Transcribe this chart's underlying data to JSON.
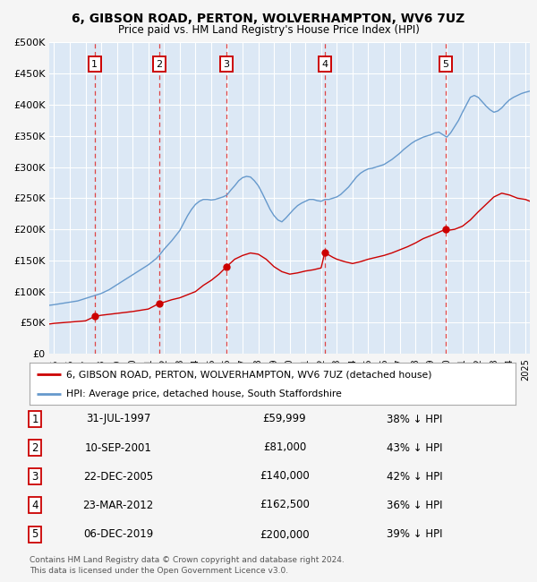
{
  "title": "6, GIBSON ROAD, PERTON, WOLVERHAMPTON, WV6 7UZ",
  "subtitle": "Price paid vs. HM Land Registry's House Price Index (HPI)",
  "background_color": "#f5f5f5",
  "plot_bg_color": "#dce8f5",
  "grid_color": "#ffffff",
  "ylim": [
    0,
    500000
  ],
  "yticks": [
    0,
    50000,
    100000,
    150000,
    200000,
    250000,
    300000,
    350000,
    400000,
    450000,
    500000
  ],
  "ytick_labels": [
    "£0",
    "£50K",
    "£100K",
    "£150K",
    "£200K",
    "£250K",
    "£300K",
    "£350K",
    "£400K",
    "£450K",
    "£500K"
  ],
  "xlim_start": 1994.7,
  "xlim_end": 2025.3,
  "xtick_years": [
    1995,
    1996,
    1997,
    1998,
    1999,
    2000,
    2001,
    2002,
    2003,
    2004,
    2005,
    2006,
    2007,
    2008,
    2009,
    2010,
    2011,
    2012,
    2013,
    2014,
    2015,
    2016,
    2017,
    2018,
    2019,
    2020,
    2021,
    2022,
    2023,
    2024,
    2025
  ],
  "sales": [
    {
      "date_decimal": 1997.58,
      "price": 59999,
      "label": "1"
    },
    {
      "date_decimal": 2001.69,
      "price": 81000,
      "label": "2"
    },
    {
      "date_decimal": 2005.98,
      "price": 140000,
      "label": "3"
    },
    {
      "date_decimal": 2012.23,
      "price": 162500,
      "label": "4"
    },
    {
      "date_decimal": 2019.93,
      "price": 200000,
      "label": "5"
    }
  ],
  "sale_color": "#cc0000",
  "hpi_color": "#6699cc",
  "dashed_line_color": "#dd4444",
  "legend_label_red": "6, GIBSON ROAD, PERTON, WOLVERHAMPTON, WV6 7UZ (detached house)",
  "legend_label_blue": "HPI: Average price, detached house, South Staffordshire",
  "table_rows": [
    {
      "num": "1",
      "date": "31-JUL-1997",
      "price": "£59,999",
      "hpi": "38% ↓ HPI"
    },
    {
      "num": "2",
      "date": "10-SEP-2001",
      "price": "£81,000",
      "hpi": "43% ↓ HPI"
    },
    {
      "num": "3",
      "date": "22-DEC-2005",
      "price": "£140,000",
      "hpi": "42% ↓ HPI"
    },
    {
      "num": "4",
      "date": "23-MAR-2012",
      "price": "£162,500",
      "hpi": "36% ↓ HPI"
    },
    {
      "num": "5",
      "date": "06-DEC-2019",
      "price": "£200,000",
      "hpi": "39% ↓ HPI"
    }
  ],
  "footer": "Contains HM Land Registry data © Crown copyright and database right 2024.\nThis data is licensed under the Open Government Licence v3.0.",
  "hpi_data": {
    "years": [
      1994.7,
      1995.0,
      1995.25,
      1995.5,
      1995.75,
      1996.0,
      1996.25,
      1996.5,
      1996.75,
      1997.0,
      1997.25,
      1997.5,
      1997.75,
      1998.0,
      1998.25,
      1998.5,
      1998.75,
      1999.0,
      1999.25,
      1999.5,
      1999.75,
      2000.0,
      2000.25,
      2000.5,
      2000.75,
      2001.0,
      2001.25,
      2001.5,
      2001.75,
      2002.0,
      2002.25,
      2002.5,
      2002.75,
      2003.0,
      2003.25,
      2003.5,
      2003.75,
      2004.0,
      2004.25,
      2004.5,
      2004.75,
      2005.0,
      2005.25,
      2005.5,
      2005.75,
      2006.0,
      2006.25,
      2006.5,
      2006.75,
      2007.0,
      2007.25,
      2007.5,
      2007.75,
      2008.0,
      2008.25,
      2008.5,
      2008.75,
      2009.0,
      2009.25,
      2009.5,
      2009.75,
      2010.0,
      2010.25,
      2010.5,
      2010.75,
      2011.0,
      2011.25,
      2011.5,
      2011.75,
      2012.0,
      2012.25,
      2012.5,
      2012.75,
      2013.0,
      2013.25,
      2013.5,
      2013.75,
      2014.0,
      2014.25,
      2014.5,
      2014.75,
      2015.0,
      2015.25,
      2015.5,
      2015.75,
      2016.0,
      2016.25,
      2016.5,
      2016.75,
      2017.0,
      2017.25,
      2017.5,
      2017.75,
      2018.0,
      2018.25,
      2018.5,
      2018.75,
      2019.0,
      2019.25,
      2019.5,
      2019.75,
      2020.0,
      2020.25,
      2020.5,
      2020.75,
      2021.0,
      2021.25,
      2021.5,
      2021.75,
      2022.0,
      2022.25,
      2022.5,
      2022.75,
      2023.0,
      2023.25,
      2023.5,
      2023.75,
      2024.0,
      2024.25,
      2024.5,
      2024.75,
      2025.0,
      2025.3
    ],
    "values": [
      78000,
      79000,
      80000,
      81000,
      82000,
      83000,
      84000,
      85000,
      87000,
      89000,
      91000,
      93000,
      95000,
      97000,
      100000,
      103000,
      107000,
      111000,
      115000,
      119000,
      123000,
      127000,
      131000,
      135000,
      139000,
      143000,
      148000,
      153000,
      160000,
      168000,
      175000,
      182000,
      190000,
      198000,
      210000,
      222000,
      232000,
      240000,
      245000,
      248000,
      248000,
      247000,
      248000,
      250000,
      252000,
      255000,
      263000,
      270000,
      278000,
      283000,
      285000,
      284000,
      278000,
      270000,
      258000,
      245000,
      232000,
      222000,
      215000,
      212000,
      218000,
      225000,
      232000,
      238000,
      242000,
      245000,
      248000,
      248000,
      246000,
      245000,
      248000,
      248000,
      250000,
      252000,
      256000,
      262000,
      268000,
      276000,
      284000,
      290000,
      294000,
      297000,
      298000,
      300000,
      302000,
      304000,
      308000,
      312000,
      317000,
      322000,
      328000,
      333000,
      338000,
      342000,
      345000,
      348000,
      350000,
      352000,
      355000,
      356000,
      352000,
      348000,
      355000,
      365000,
      375000,
      388000,
      400000,
      412000,
      415000,
      412000,
      405000,
      398000,
      392000,
      388000,
      390000,
      395000,
      402000,
      408000,
      412000,
      415000,
      418000,
      420000,
      422000
    ]
  },
  "red_line_data": {
    "years": [
      1994.7,
      1995.0,
      1995.5,
      1996.0,
      1996.5,
      1997.0,
      1997.58,
      1998.0,
      1998.5,
      1999.0,
      1999.5,
      2000.0,
      2000.5,
      2001.0,
      2001.69,
      2002.0,
      2002.5,
      2003.0,
      2003.5,
      2004.0,
      2004.5,
      2005.0,
      2005.5,
      2005.98,
      2006.5,
      2007.0,
      2007.5,
      2008.0,
      2008.5,
      2009.0,
      2009.5,
      2010.0,
      2010.5,
      2011.0,
      2011.5,
      2012.0,
      2012.23,
      2012.75,
      2013.0,
      2013.5,
      2014.0,
      2014.5,
      2015.0,
      2015.5,
      2016.0,
      2016.5,
      2017.0,
      2017.5,
      2018.0,
      2018.5,
      2019.0,
      2019.93,
      2020.0,
      2020.5,
      2021.0,
      2021.5,
      2022.0,
      2022.5,
      2023.0,
      2023.5,
      2024.0,
      2024.5,
      2025.0,
      2025.3
    ],
    "values": [
      48000,
      49000,
      50000,
      51000,
      52000,
      53000,
      59999,
      62000,
      63500,
      65000,
      66500,
      68000,
      70000,
      72000,
      81000,
      83000,
      87000,
      90000,
      95000,
      100000,
      110000,
      118000,
      128000,
      140000,
      152000,
      158000,
      162000,
      160000,
      152000,
      140000,
      132000,
      128000,
      130000,
      133000,
      135000,
      138000,
      162500,
      155000,
      152000,
      148000,
      145000,
      148000,
      152000,
      155000,
      158000,
      162000,
      167000,
      172000,
      178000,
      185000,
      190000,
      200000,
      198000,
      200000,
      205000,
      215000,
      228000,
      240000,
      252000,
      258000,
      255000,
      250000,
      248000,
      245000
    ]
  }
}
